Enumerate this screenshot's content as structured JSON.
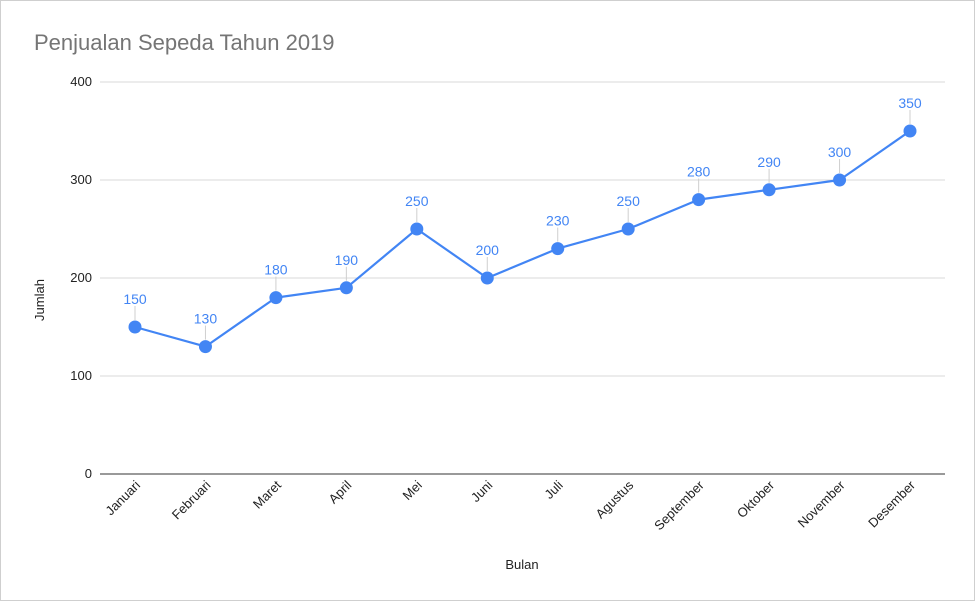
{
  "chart_data": {
    "type": "line",
    "title": "Penjualan Sepeda Tahun 2019",
    "xlabel": "Bulan",
    "ylabel": "Jumlah",
    "categories": [
      "Januari",
      "Februari",
      "Maret",
      "April",
      "Mei",
      "Juni",
      "Juli",
      "Agustus",
      "September",
      "Oktober",
      "November",
      "Desember"
    ],
    "series": [
      {
        "values": [
          150,
          130,
          180,
          190,
          250,
          200,
          230,
          250,
          280,
          290,
          300,
          350
        ]
      }
    ],
    "ylim": [
      0,
      400
    ],
    "yticks": [
      0,
      100,
      200,
      300,
      400
    ],
    "grid": true,
    "data_labels": true,
    "color": "#4285f4",
    "gridline_color": "#d9d9d9"
  }
}
